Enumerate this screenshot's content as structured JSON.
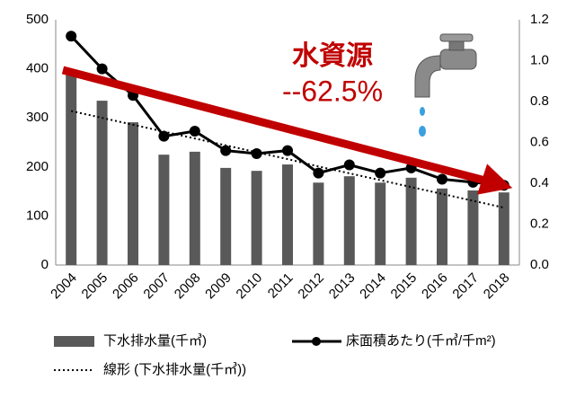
{
  "chart_data": {
    "type": "bar-line",
    "categories": [
      "2004",
      "2005",
      "2006",
      "2007",
      "2008",
      "2009",
      "2010",
      "2011",
      "2012",
      "2013",
      "2014",
      "2015",
      "2016",
      "2017",
      "2018"
    ],
    "series": [
      {
        "name": "下水排水量(千㎥)",
        "color": "#595959",
        "values": [
          393,
          335,
          291,
          225,
          231,
          198,
          192,
          205,
          168,
          181,
          168,
          178,
          156,
          152,
          148
        ]
      },
      {
        "name": "床面積あたり(千㎥/千m²)",
        "color": "#000000",
        "axis": "y2",
        "values": [
          1.12,
          0.96,
          0.83,
          0.63,
          0.655,
          0.56,
          0.545,
          0.56,
          0.45,
          0.49,
          0.45,
          0.475,
          0.42,
          0.405,
          0.39
        ]
      },
      {
        "name": "線形 (下水排水量(千㎥))",
        "color": "#000000",
        "values": [
          314,
          300,
          286,
          272,
          258,
          244,
          230,
          216,
          201,
          187,
          173,
          159,
          145,
          131,
          117
        ]
      }
    ],
    "ylim": [
      0,
      500
    ],
    "yticks": [
      0,
      100,
      200,
      300,
      400,
      500
    ],
    "y2lim": [
      0,
      1.2
    ],
    "y2ticks": [
      {
        "value": 0,
        "label": "0.0"
      },
      0.2,
      0.4,
      0.6,
      0.8,
      {
        "value": 1,
        "label": "1.0"
      },
      1.2
    ],
    "annotations": [
      "水資源",
      "--62.5%"
    ],
    "annotation_color": "#c00000"
  }
}
